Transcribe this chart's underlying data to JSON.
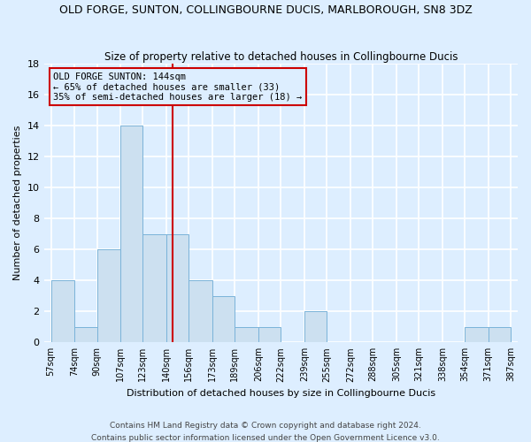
{
  "title": "OLD FORGE, SUNTON, COLLINGBOURNE DUCIS, MARLBOROUGH, SN8 3DZ",
  "subtitle": "Size of property relative to detached houses in Collingbourne Ducis",
  "xlabel": "Distribution of detached houses by size in Collingbourne Ducis",
  "ylabel": "Number of detached properties",
  "bin_edges": [
    57,
    74,
    90,
    107,
    123,
    140,
    156,
    173,
    189,
    206,
    222,
    239,
    255,
    272,
    288,
    305,
    321,
    338,
    354,
    371,
    387
  ],
  "counts": [
    4,
    1,
    6,
    14,
    7,
    7,
    4,
    3,
    1,
    1,
    0,
    2,
    0,
    0,
    0,
    0,
    0,
    0,
    1,
    1
  ],
  "bar_color": "#cce0f0",
  "bar_edgecolor": "#7ab3d9",
  "reference_line_x": 144,
  "reference_line_color": "#cc0000",
  "annotation_title": "OLD FORGE SUNTON: 144sqm",
  "annotation_line1": "← 65% of detached houses are smaller (33)",
  "annotation_line2": "35% of semi-detached houses are larger (18) →",
  "annotation_box_edgecolor": "#cc0000",
  "ylim": [
    0,
    18
  ],
  "yticks": [
    0,
    2,
    4,
    6,
    8,
    10,
    12,
    14,
    16,
    18
  ],
  "footnote1": "Contains HM Land Registry data © Crown copyright and database right 2024.",
  "footnote2": "Contains public sector information licensed under the Open Government Licence v3.0.",
  "background_color": "#ddeeff",
  "grid_color": "#ffffff",
  "title_fontsize": 9,
  "subtitle_fontsize": 8.5,
  "axis_label_fontsize": 8,
  "tick_fontsize": 7,
  "annotation_fontsize": 7.5,
  "footnote_fontsize": 6.5
}
